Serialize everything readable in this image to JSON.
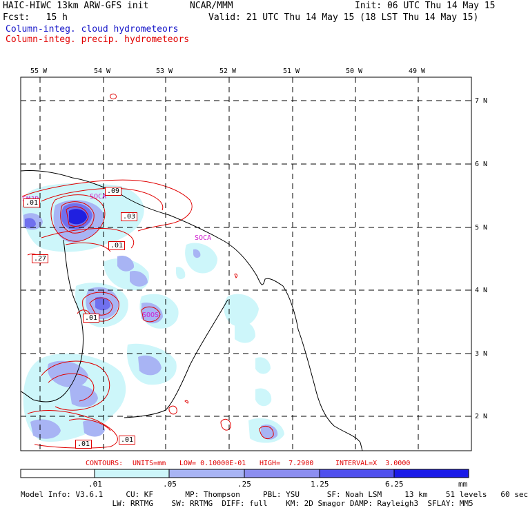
{
  "header": {
    "model_title": "HAIC-HIWC 13km ARW-GFS init",
    "org": "NCAR/MMM",
    "init": "Init: 06 UTC Thu 14 May 15",
    "fcst": "Fcst:   15 h",
    "valid": "Valid: 21 UTC Thu 14 May 15 (18 LST Thu 14 May 15)",
    "field_blue": "Column-integ. cloud hydrometeors",
    "field_red": "Column-integ. precip. hydrometeors"
  },
  "map": {
    "lon_labels": [
      "55 W",
      "54 W",
      "53 W",
      "52 W",
      "51 W",
      "50 W",
      "49 W"
    ],
    "lat_labels": [
      "7 N",
      "6 N",
      "5 N",
      "4 N",
      "3 N",
      "2 N"
    ],
    "stations": [
      "SOCA",
      "SOOS",
      "SOCA",
      "SMJP"
    ],
    "contour_labels": [
      ".09",
      ".03",
      ".01",
      ".27",
      ".01",
      ".01",
      ".01",
      ".01"
    ]
  },
  "contours": {
    "label": "CONTOURS:",
    "units": "UNITS=mm",
    "low": "LOW= 0.10000E-01",
    "high": "HIGH=  7.2900",
    "interval": "INTERVAL=X  3.0000"
  },
  "colorbar": {
    "ticks": [
      ".01",
      ".05",
      ".25",
      "1.25",
      "6.25"
    ],
    "unit": "mm",
    "colors": [
      "#ffffff",
      "#cdf6fa",
      "#a8b4f4",
      "#8c8ef0",
      "#5050ee",
      "#1a1ae8"
    ]
  },
  "model_info": {
    "line1": "Model Info: V3.6.1     CU: KF       MP: Thompson     PBL: YSU      SF: Noah LSM     13 km    51 levels   60 sec",
    "line2": "                    LW: RRTMG    SW: RRTMG  DIFF: full    KM: 2D Smagor DAMP: Rayleigh3  SFLAY: MM5"
  }
}
